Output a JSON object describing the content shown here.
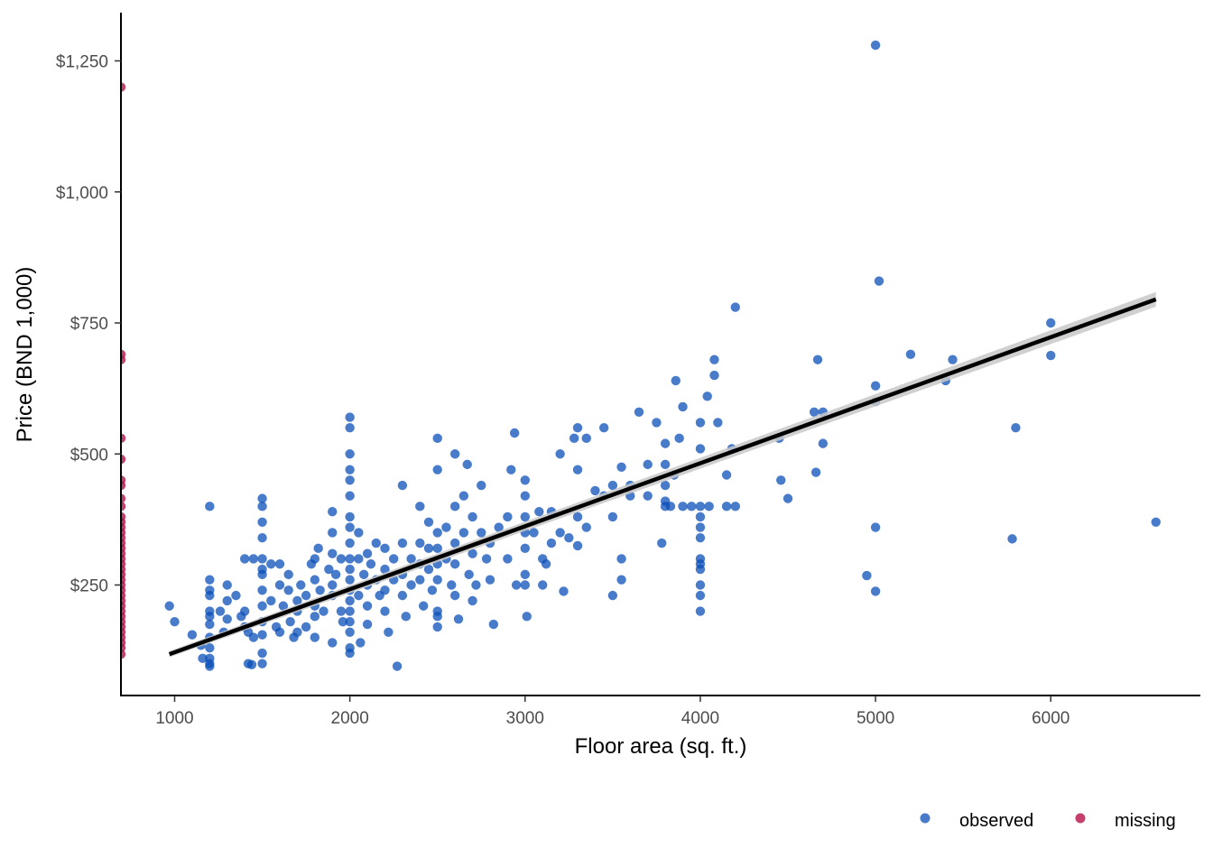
{
  "chart_data": {
    "type": "scatter",
    "xlabel": "Floor area (sq. ft.)",
    "ylabel": "Price (BND 1,000)",
    "xlim": [
      700,
      6850
    ],
    "ylim": [
      80,
      1330
    ],
    "x_ticks": [
      1000,
      2000,
      3000,
      4000,
      5000,
      6000
    ],
    "x_tick_labels": [
      "1000",
      "2000",
      "3000",
      "4000",
      "5000",
      "6000"
    ],
    "y_ticks": [
      250,
      500,
      750,
      1000,
      1250
    ],
    "y_tick_labels": [
      "$250",
      "$500",
      "$750",
      "$1,000",
      "$1,250"
    ],
    "grid": false,
    "legend_position": "bottom-right",
    "colors": {
      "observed": "#0b4fb8",
      "missing": "#b8104a",
      "fit_line": "#000000",
      "confidence_band": "#c8c8c8"
    },
    "legend": [
      {
        "name": "observed",
        "color": "#0b4fb8"
      },
      {
        "name": "missing",
        "color": "#b8104a"
      }
    ],
    "trend_line": {
      "x": [
        970,
        6600
      ],
      "y": [
        118,
        795
      ],
      "ci_halfwidth_at_ends": [
        6,
        14
      ]
    },
    "series": [
      {
        "name": "observed",
        "points": [
          [
            970,
            210
          ],
          [
            1000,
            180
          ],
          [
            1100,
            155
          ],
          [
            1150,
            135
          ],
          [
            1160,
            110
          ],
          [
            1200,
            400
          ],
          [
            1200,
            260
          ],
          [
            1200,
            240
          ],
          [
            1200,
            230
          ],
          [
            1200,
            200
          ],
          [
            1200,
            190
          ],
          [
            1200,
            175
          ],
          [
            1200,
            150
          ],
          [
            1200,
            130
          ],
          [
            1200,
            110
          ],
          [
            1200,
            100
          ],
          [
            1200,
            95
          ],
          [
            1260,
            200
          ],
          [
            1280,
            160
          ],
          [
            1300,
            250
          ],
          [
            1300,
            220
          ],
          [
            1300,
            185
          ],
          [
            1350,
            230
          ],
          [
            1380,
            190
          ],
          [
            1400,
            170
          ],
          [
            1400,
            200
          ],
          [
            1400,
            300
          ],
          [
            1420,
            160
          ],
          [
            1420,
            100
          ],
          [
            1440,
            98
          ],
          [
            1450,
            300
          ],
          [
            1450,
            150
          ],
          [
            1500,
            415
          ],
          [
            1500,
            400
          ],
          [
            1500,
            370
          ],
          [
            1500,
            340
          ],
          [
            1500,
            300
          ],
          [
            1500,
            280
          ],
          [
            1500,
            270
          ],
          [
            1500,
            240
          ],
          [
            1500,
            210
          ],
          [
            1500,
            180
          ],
          [
            1500,
            155
          ],
          [
            1500,
            120
          ],
          [
            1500,
            100
          ],
          [
            1550,
            290
          ],
          [
            1550,
            220
          ],
          [
            1580,
            170
          ],
          [
            1600,
            250
          ],
          [
            1600,
            290
          ],
          [
            1600,
            160
          ],
          [
            1620,
            210
          ],
          [
            1650,
            270
          ],
          [
            1650,
            240
          ],
          [
            1660,
            180
          ],
          [
            1680,
            150
          ],
          [
            1700,
            200
          ],
          [
            1700,
            220
          ],
          [
            1700,
            160
          ],
          [
            1720,
            250
          ],
          [
            1750,
            230
          ],
          [
            1750,
            170
          ],
          [
            1780,
            290
          ],
          [
            1800,
            300
          ],
          [
            1800,
            260
          ],
          [
            1800,
            210
          ],
          [
            1800,
            190
          ],
          [
            1800,
            150
          ],
          [
            1820,
            320
          ],
          [
            1830,
            240
          ],
          [
            1850,
            200
          ],
          [
            1880,
            280
          ],
          [
            1900,
            390
          ],
          [
            1900,
            350
          ],
          [
            1900,
            310
          ],
          [
            1900,
            250
          ],
          [
            1900,
            230
          ],
          [
            1900,
            140
          ],
          [
            1920,
            270
          ],
          [
            1950,
            300
          ],
          [
            1950,
            200
          ],
          [
            1960,
            180
          ],
          [
            2000,
            570
          ],
          [
            2000,
            550
          ],
          [
            2000,
            500
          ],
          [
            2000,
            470
          ],
          [
            2000,
            450
          ],
          [
            2000,
            420
          ],
          [
            2000,
            380
          ],
          [
            2000,
            360
          ],
          [
            2000,
            330
          ],
          [
            2000,
            300
          ],
          [
            2000,
            280
          ],
          [
            2000,
            260
          ],
          [
            2000,
            240
          ],
          [
            2000,
            220
          ],
          [
            2000,
            200
          ],
          [
            2000,
            180
          ],
          [
            2000,
            160
          ],
          [
            2000,
            130
          ],
          [
            2000,
            120
          ],
          [
            2050,
            350
          ],
          [
            2050,
            300
          ],
          [
            2050,
            230
          ],
          [
            2060,
            140
          ],
          [
            2080,
            270
          ],
          [
            2100,
            310
          ],
          [
            2100,
            250
          ],
          [
            2100,
            210
          ],
          [
            2100,
            175
          ],
          [
            2120,
            290
          ],
          [
            2150,
            330
          ],
          [
            2150,
            260
          ],
          [
            2170,
            230
          ],
          [
            2200,
            320
          ],
          [
            2200,
            280
          ],
          [
            2200,
            240
          ],
          [
            2200,
            200
          ],
          [
            2220,
            160
          ],
          [
            2250,
            300
          ],
          [
            2250,
            260
          ],
          [
            2270,
            95
          ],
          [
            2300,
            440
          ],
          [
            2300,
            330
          ],
          [
            2300,
            270
          ],
          [
            2300,
            230
          ],
          [
            2320,
            190
          ],
          [
            2350,
            300
          ],
          [
            2350,
            250
          ],
          [
            2400,
            400
          ],
          [
            2400,
            330
          ],
          [
            2400,
            290
          ],
          [
            2400,
            260
          ],
          [
            2420,
            210
          ],
          [
            2450,
            370
          ],
          [
            2450,
            320
          ],
          [
            2450,
            280
          ],
          [
            2470,
            240
          ],
          [
            2500,
            530
          ],
          [
            2500,
            470
          ],
          [
            2500,
            350
          ],
          [
            2500,
            320
          ],
          [
            2500,
            290
          ],
          [
            2500,
            260
          ],
          [
            2500,
            200
          ],
          [
            2500,
            190
          ],
          [
            2500,
            170
          ],
          [
            2550,
            360
          ],
          [
            2550,
            300
          ],
          [
            2580,
            250
          ],
          [
            2600,
            500
          ],
          [
            2600,
            400
          ],
          [
            2600,
            330
          ],
          [
            2600,
            290
          ],
          [
            2600,
            230
          ],
          [
            2620,
            185
          ],
          [
            2650,
            420
          ],
          [
            2650,
            350
          ],
          [
            2670,
            480
          ],
          [
            2680,
            270
          ],
          [
            2700,
            380
          ],
          [
            2700,
            310
          ],
          [
            2700,
            220
          ],
          [
            2720,
            250
          ],
          [
            2750,
            440
          ],
          [
            2750,
            350
          ],
          [
            2780,
            300
          ],
          [
            2800,
            330
          ],
          [
            2800,
            260
          ],
          [
            2820,
            175
          ],
          [
            2850,
            360
          ],
          [
            2900,
            300
          ],
          [
            2900,
            380
          ],
          [
            2920,
            470
          ],
          [
            2940,
            540
          ],
          [
            2950,
            250
          ],
          [
            3000,
            450
          ],
          [
            3000,
            420
          ],
          [
            3000,
            380
          ],
          [
            3000,
            350
          ],
          [
            3000,
            320
          ],
          [
            3000,
            270
          ],
          [
            3000,
            250
          ],
          [
            3010,
            190
          ],
          [
            3050,
            350
          ],
          [
            3080,
            390
          ],
          [
            3100,
            300
          ],
          [
            3100,
            250
          ],
          [
            3120,
            290
          ],
          [
            3150,
            390
          ],
          [
            3150,
            330
          ],
          [
            3200,
            500
          ],
          [
            3200,
            350
          ],
          [
            3220,
            238
          ],
          [
            3250,
            340
          ],
          [
            3280,
            530
          ],
          [
            3300,
            550
          ],
          [
            3300,
            470
          ],
          [
            3300,
            380
          ],
          [
            3300,
            325
          ],
          [
            3350,
            530
          ],
          [
            3350,
            360
          ],
          [
            3400,
            430
          ],
          [
            3450,
            550
          ],
          [
            3450,
            420
          ],
          [
            3500,
            440
          ],
          [
            3500,
            380
          ],
          [
            3500,
            230
          ],
          [
            3550,
            475
          ],
          [
            3550,
            300
          ],
          [
            3550,
            260
          ],
          [
            3600,
            420
          ],
          [
            3600,
            440
          ],
          [
            3650,
            580
          ],
          [
            3700,
            480
          ],
          [
            3700,
            420
          ],
          [
            3750,
            560
          ],
          [
            3780,
            330
          ],
          [
            3800,
            520
          ],
          [
            3800,
            480
          ],
          [
            3800,
            440
          ],
          [
            3800,
            410
          ],
          [
            3800,
            400
          ],
          [
            3830,
            400
          ],
          [
            3850,
            460
          ],
          [
            3860,
            640
          ],
          [
            3880,
            530
          ],
          [
            3900,
            590
          ],
          [
            3900,
            400
          ],
          [
            3950,
            400
          ],
          [
            4000,
            560
          ],
          [
            4000,
            510
          ],
          [
            4000,
            400
          ],
          [
            4000,
            380
          ],
          [
            4000,
            360
          ],
          [
            4000,
            340
          ],
          [
            4000,
            300
          ],
          [
            4000,
            290
          ],
          [
            4000,
            280
          ],
          [
            4000,
            250
          ],
          [
            4000,
            230
          ],
          [
            4000,
            200
          ],
          [
            4040,
            610
          ],
          [
            4050,
            400
          ],
          [
            4080,
            680
          ],
          [
            4080,
            650
          ],
          [
            4100,
            560
          ],
          [
            4150,
            460
          ],
          [
            4150,
            400
          ],
          [
            4180,
            510
          ],
          [
            4200,
            780
          ],
          [
            4200,
            400
          ],
          [
            4450,
            530
          ],
          [
            4460,
            450
          ],
          [
            4500,
            415
          ],
          [
            4650,
            580
          ],
          [
            4660,
            465
          ],
          [
            4670,
            680
          ],
          [
            4700,
            580
          ],
          [
            4700,
            520
          ],
          [
            5000,
            1280
          ],
          [
            5000,
            630
          ],
          [
            5000,
            600
          ],
          [
            5000,
            360
          ],
          [
            5000,
            238
          ],
          [
            4950,
            268
          ],
          [
            5020,
            830
          ],
          [
            5200,
            690
          ],
          [
            5400,
            640
          ],
          [
            5440,
            680
          ],
          [
            5780,
            338
          ],
          [
            5800,
            550
          ],
          [
            6000,
            750
          ],
          [
            6000,
            688
          ],
          [
            6600,
            370
          ]
        ]
      },
      {
        "name": "missing",
        "x_note": "plotted on the y-axis line (floor area missing)",
        "y_values": [
          1200,
          690,
          680,
          530,
          490,
          450,
          440,
          415,
          400,
          380,
          370,
          360,
          350,
          340,
          330,
          320,
          310,
          300,
          290,
          280,
          270,
          260,
          250,
          240,
          230,
          220,
          210,
          200,
          190,
          180,
          170,
          160,
          150,
          140,
          130,
          118
        ]
      }
    ]
  }
}
